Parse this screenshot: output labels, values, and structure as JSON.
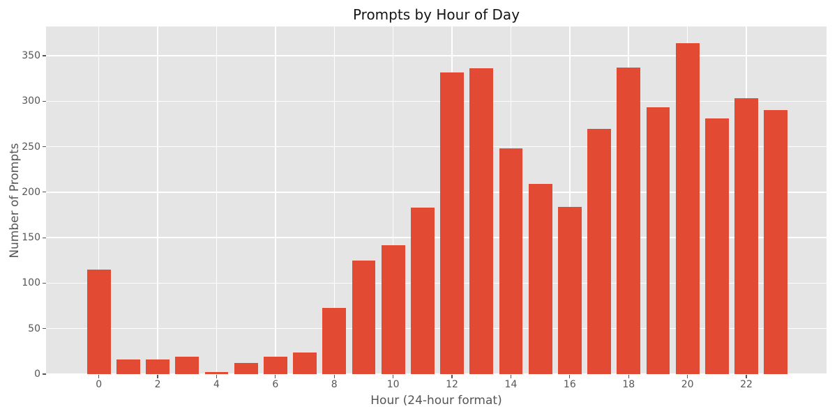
{
  "chart_data": {
    "type": "bar",
    "title": "Prompts by Hour of Day",
    "xlabel": "Hour (24-hour format)",
    "ylabel": "Number of Prompts",
    "categories": [
      0,
      1,
      2,
      3,
      4,
      5,
      6,
      7,
      8,
      9,
      10,
      11,
      12,
      13,
      14,
      15,
      16,
      17,
      18,
      19,
      20,
      21,
      22,
      23
    ],
    "values": [
      115,
      16,
      16,
      19,
      2,
      12,
      19,
      24,
      73,
      125,
      142,
      183,
      332,
      336,
      248,
      209,
      184,
      270,
      337,
      293,
      364,
      281,
      303,
      290
    ],
    "xticks": [
      0,
      2,
      4,
      6,
      8,
      10,
      12,
      14,
      16,
      18,
      20,
      22
    ],
    "yticks": [
      0,
      50,
      100,
      150,
      200,
      250,
      300,
      350
    ],
    "ylim": [
      0,
      382.2
    ],
    "xlim": [
      -1.8,
      24.7
    ],
    "grid": true,
    "legend": false,
    "bar_color": "#E24A33",
    "plot_bg_color": "#E5E5E5",
    "grid_color": "#FFFFFF",
    "tick_color": "#555555",
    "label_color": "#555555",
    "title_color": "#151515",
    "figure_bg_color": "#FFFFFF"
  }
}
